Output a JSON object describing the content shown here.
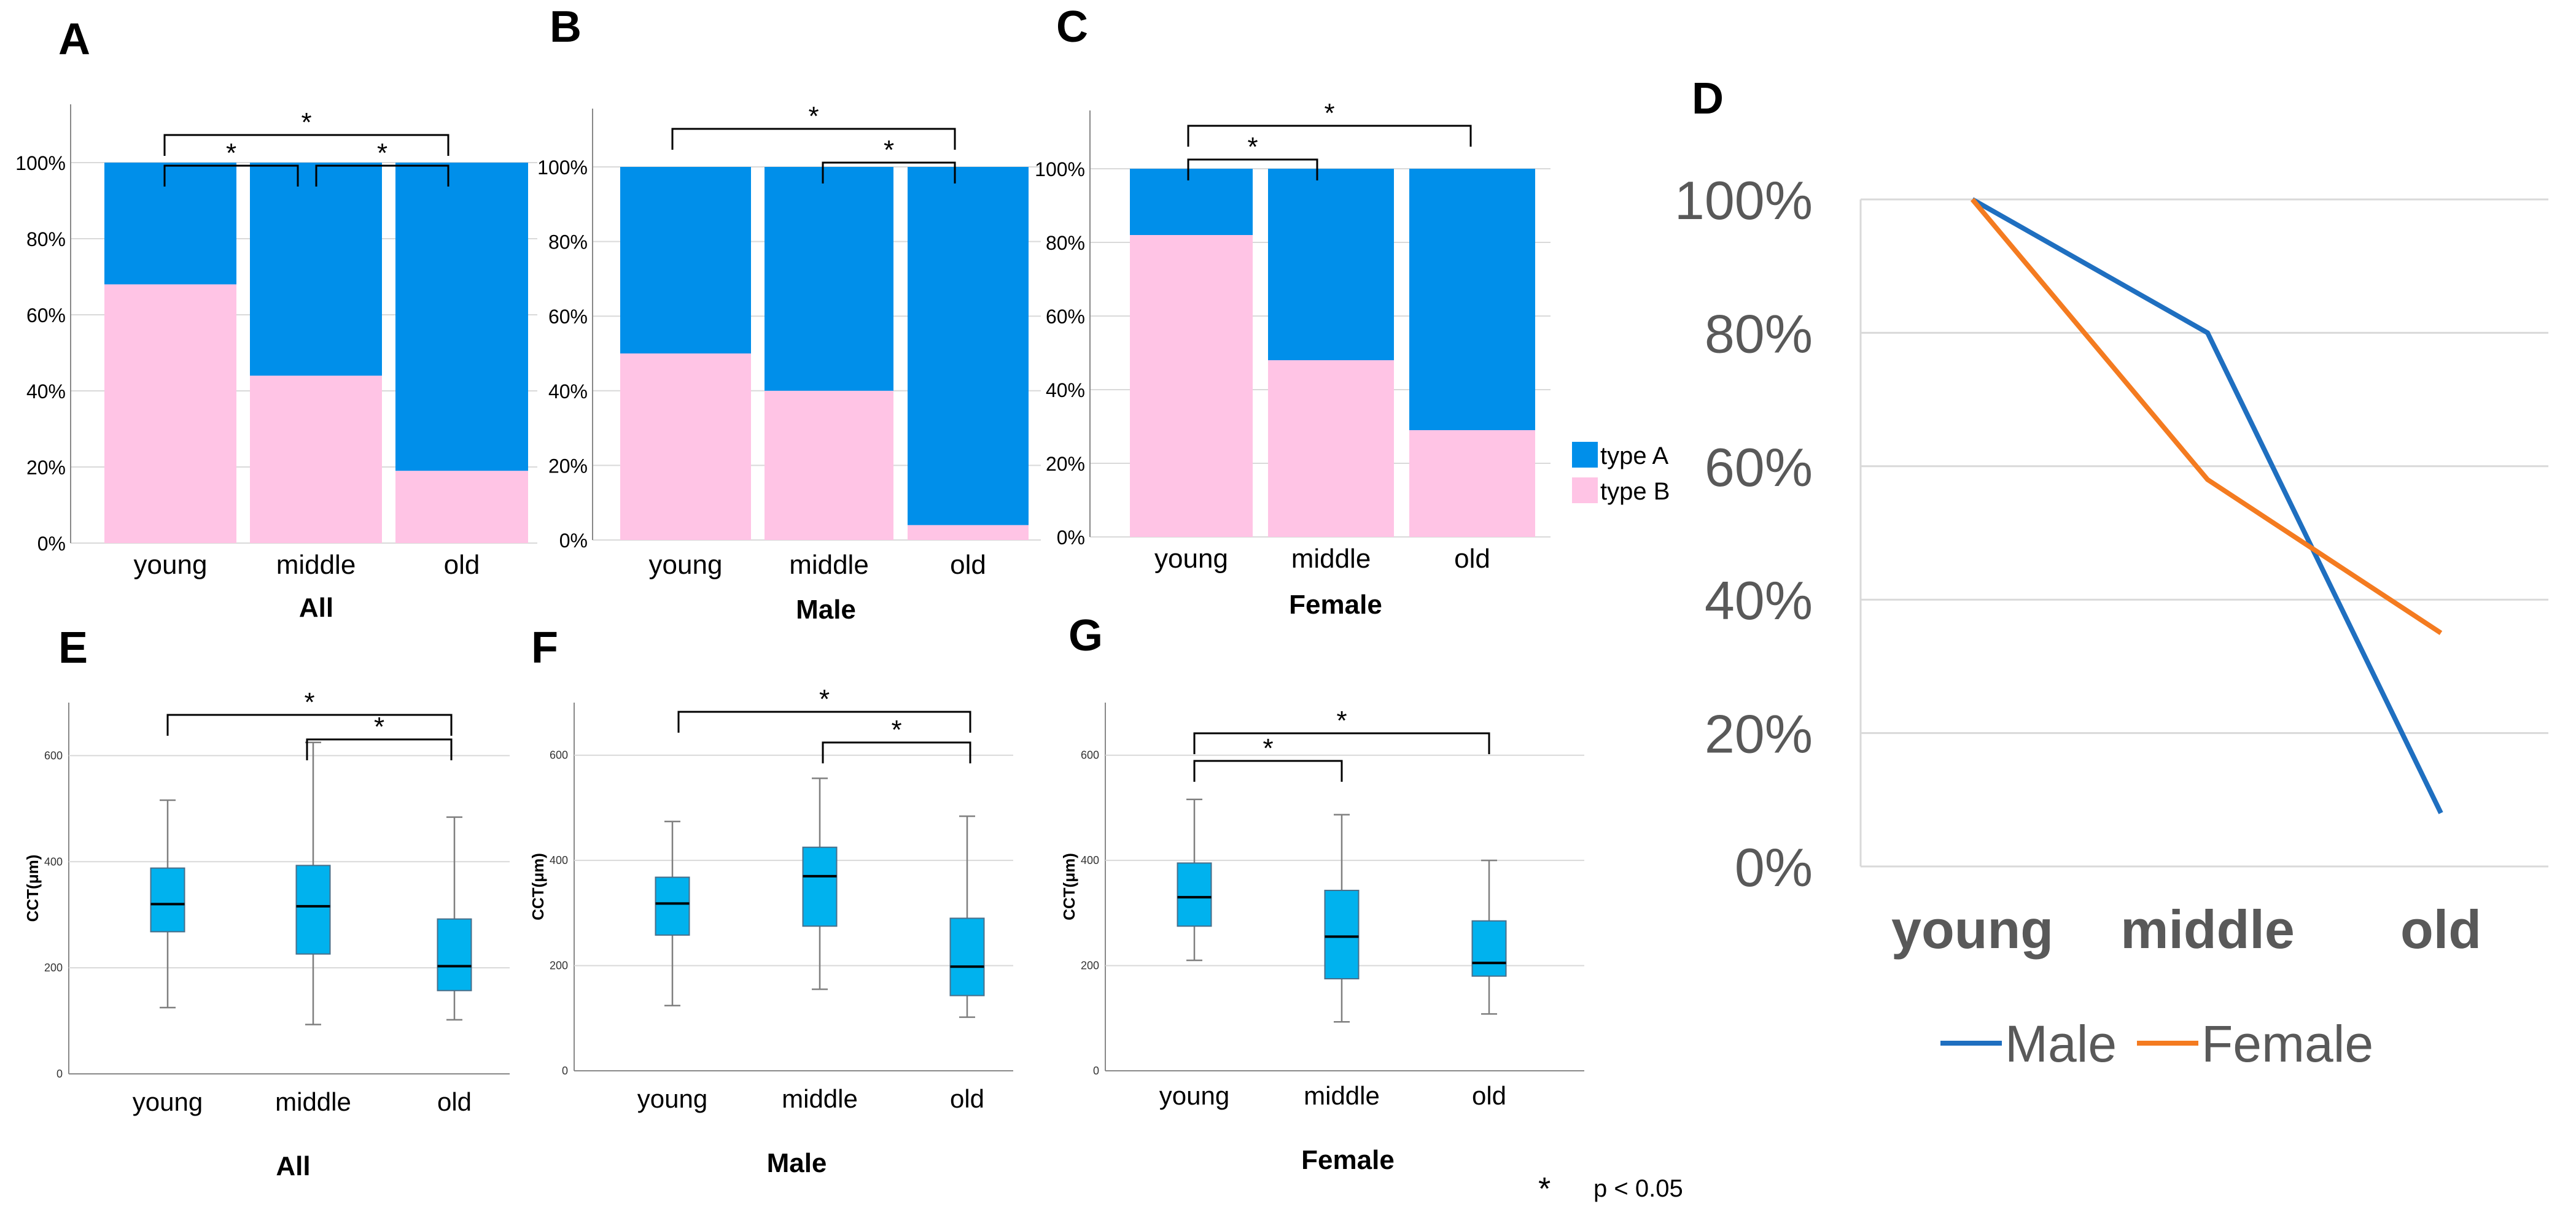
{
  "figure": {
    "significance_note": "p < 0.05",
    "significance_symbol": "*"
  },
  "chart_data": [
    {
      "panel": "A",
      "type": "bar",
      "stacked": true,
      "categories": [
        "young",
        "middle",
        "old"
      ],
      "series": [
        {
          "name": "type B",
          "color": "#ffc4e5",
          "values": [
            68,
            44,
            19
          ]
        },
        {
          "name": "type A",
          "color": "#008fea",
          "values": [
            32,
            56,
            81
          ]
        }
      ],
      "ylim": [
        0,
        100
      ],
      "yticks": [
        "0%",
        "20%",
        "40%",
        "60%",
        "80%",
        "100%"
      ],
      "xlabel": "All",
      "significance": [
        [
          "young",
          "middle"
        ],
        [
          "middle",
          "old"
        ],
        [
          "young",
          "old"
        ]
      ]
    },
    {
      "panel": "B",
      "type": "bar",
      "stacked": true,
      "categories": [
        "young",
        "middle",
        "old"
      ],
      "series": [
        {
          "name": "type B",
          "color": "#ffc4e5",
          "values": [
            50,
            40,
            4
          ]
        },
        {
          "name": "type A",
          "color": "#008fea",
          "values": [
            50,
            60,
            96
          ]
        }
      ],
      "ylim": [
        0,
        100
      ],
      "yticks": [
        "0%",
        "20%",
        "40%",
        "60%",
        "80%",
        "100%"
      ],
      "xlabel": "Male",
      "significance": [
        [
          "middle",
          "old"
        ],
        [
          "young",
          "old"
        ]
      ]
    },
    {
      "panel": "C",
      "type": "bar",
      "stacked": true,
      "categories": [
        "young",
        "middle",
        "old"
      ],
      "series": [
        {
          "name": "type B",
          "color": "#ffc4e5",
          "values": [
            82,
            48,
            29
          ]
        },
        {
          "name": "type A",
          "color": "#008fea",
          "values": [
            18,
            52,
            71
          ]
        }
      ],
      "ylim": [
        0,
        100
      ],
      "yticks": [
        "0%",
        "20%",
        "40%",
        "60%",
        "80%",
        "100%"
      ],
      "xlabel": "Female",
      "significance": [
        [
          "young",
          "middle"
        ],
        [
          "young",
          "old"
        ]
      ],
      "legend": {
        "position": "right",
        "entries": [
          "type A",
          "type B"
        ]
      }
    },
    {
      "panel": "D",
      "type": "line",
      "categories": [
        "young",
        "middle",
        "old"
      ],
      "series": [
        {
          "name": "Male",
          "color": "#1f6fc0",
          "values": [
            100,
            80,
            8
          ]
        },
        {
          "name": "Female",
          "color": "#f47b20",
          "values": [
            100,
            58,
            35
          ]
        }
      ],
      "ylim": [
        0,
        100
      ],
      "yticks": [
        "0%",
        "20%",
        "40%",
        "60%",
        "80%",
        "100%"
      ],
      "grid": true,
      "legend": {
        "position": "bottom"
      }
    },
    {
      "panel": "E",
      "type": "box",
      "categories": [
        "young",
        "middle",
        "old"
      ],
      "boxes": [
        {
          "min": 125,
          "q1": 268,
          "median": 320,
          "q3": 388,
          "max": 516
        },
        {
          "min": 93,
          "q1": 226,
          "median": 316,
          "q3": 393,
          "max": 625
        },
        {
          "min": 102,
          "q1": 157,
          "median": 203,
          "q3": 292,
          "max": 484
        }
      ],
      "ylim": [
        0,
        700
      ],
      "yticks": [
        "0",
        "200",
        "400",
        "600"
      ],
      "ylabel": "CCT(μm)",
      "xlabel": "All",
      "significance": [
        [
          "middle",
          "old"
        ],
        [
          "young",
          "old"
        ]
      ]
    },
    {
      "panel": "F",
      "type": "box",
      "categories": [
        "young",
        "middle",
        "old"
      ],
      "boxes": [
        {
          "min": 124,
          "q1": 258,
          "median": 318,
          "q3": 368,
          "max": 474
        },
        {
          "min": 155,
          "q1": 275,
          "median": 370,
          "q3": 425,
          "max": 556
        },
        {
          "min": 102,
          "q1": 143,
          "median": 198,
          "q3": 290,
          "max": 484
        }
      ],
      "ylim": [
        0,
        700
      ],
      "yticks": [
        "0",
        "200",
        "400",
        "600"
      ],
      "ylabel": "CCT(μm)",
      "xlabel": "Male",
      "significance": [
        [
          "middle",
          "old"
        ],
        [
          "young",
          "old"
        ]
      ]
    },
    {
      "panel": "G",
      "type": "box",
      "categories": [
        "young",
        "middle",
        "old"
      ],
      "boxes": [
        {
          "min": 210,
          "q1": 275,
          "median": 330,
          "q3": 395,
          "max": 516
        },
        {
          "min": 93,
          "q1": 175,
          "median": 255,
          "q3": 343,
          "max": 487
        },
        {
          "min": 108,
          "q1": 180,
          "median": 205,
          "q3": 285,
          "max": 400
        }
      ],
      "ylim": [
        0,
        700
      ],
      "yticks": [
        "0",
        "200",
        "400",
        "600"
      ],
      "ylabel": "CCT(μm)",
      "xlabel": "Female",
      "significance": [
        [
          "young",
          "middle"
        ],
        [
          "young",
          "old"
        ]
      ]
    }
  ]
}
